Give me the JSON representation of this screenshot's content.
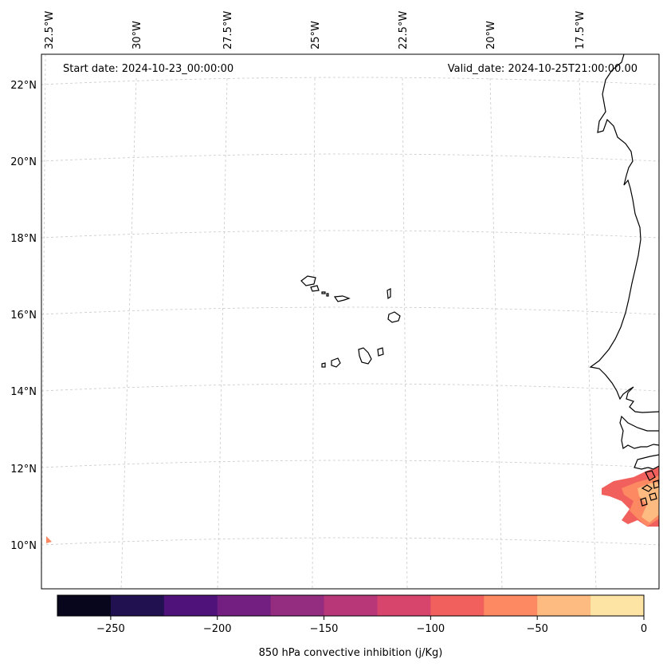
{
  "map": {
    "start_date": "Start date: 2024-10-23_00:00:00",
    "valid_date": "Valid_date: 2024-10-25T21:00:00.00",
    "lon_labels": [
      "32.5°W",
      "30°W",
      "27.5°W",
      "25°W",
      "22.5°W",
      "20°W",
      "17.5°W"
    ],
    "lat_labels": [
      "22°N",
      "20°N",
      "18°N",
      "16°N",
      "14°N",
      "12°N",
      "10°N"
    ],
    "islands": [
      "Santo Antão",
      "São Vicente",
      "Santa Luzia",
      "São Nicolau",
      "Sal",
      "Boa Vista",
      "Maio",
      "Santiago",
      "Fogo",
      "Brava"
    ]
  },
  "colorbar": {
    "label": "850 hPa convective inhibition (j/Kg)",
    "ticks": [
      "−250",
      "−200",
      "−150",
      "−100",
      "−50",
      "0"
    ],
    "tick_values": [
      -250,
      -200,
      -150,
      -100,
      -50,
      0
    ],
    "range": [
      -275,
      0
    ],
    "bins": [
      {
        "from": -275,
        "to": -250,
        "color": "#07061c"
      },
      {
        "from": -250,
        "to": -225,
        "color": "#221150"
      },
      {
        "from": -225,
        "to": -200,
        "color": "#4f127b"
      },
      {
        "from": -200,
        "to": -175,
        "color": "#721f81"
      },
      {
        "from": -175,
        "to": -150,
        "color": "#942c80"
      },
      {
        "from": -150,
        "to": -125,
        "color": "#b73779"
      },
      {
        "from": -125,
        "to": -100,
        "color": "#d8456c"
      },
      {
        "from": -100,
        "to": -75,
        "color": "#f1605d"
      },
      {
        "from": -75,
        "to": -50,
        "color": "#fc8961"
      },
      {
        "from": -50,
        "to": -25,
        "color": "#febb81"
      },
      {
        "from": -25,
        "to": 0,
        "color": "#fde3a4"
      }
    ]
  }
}
